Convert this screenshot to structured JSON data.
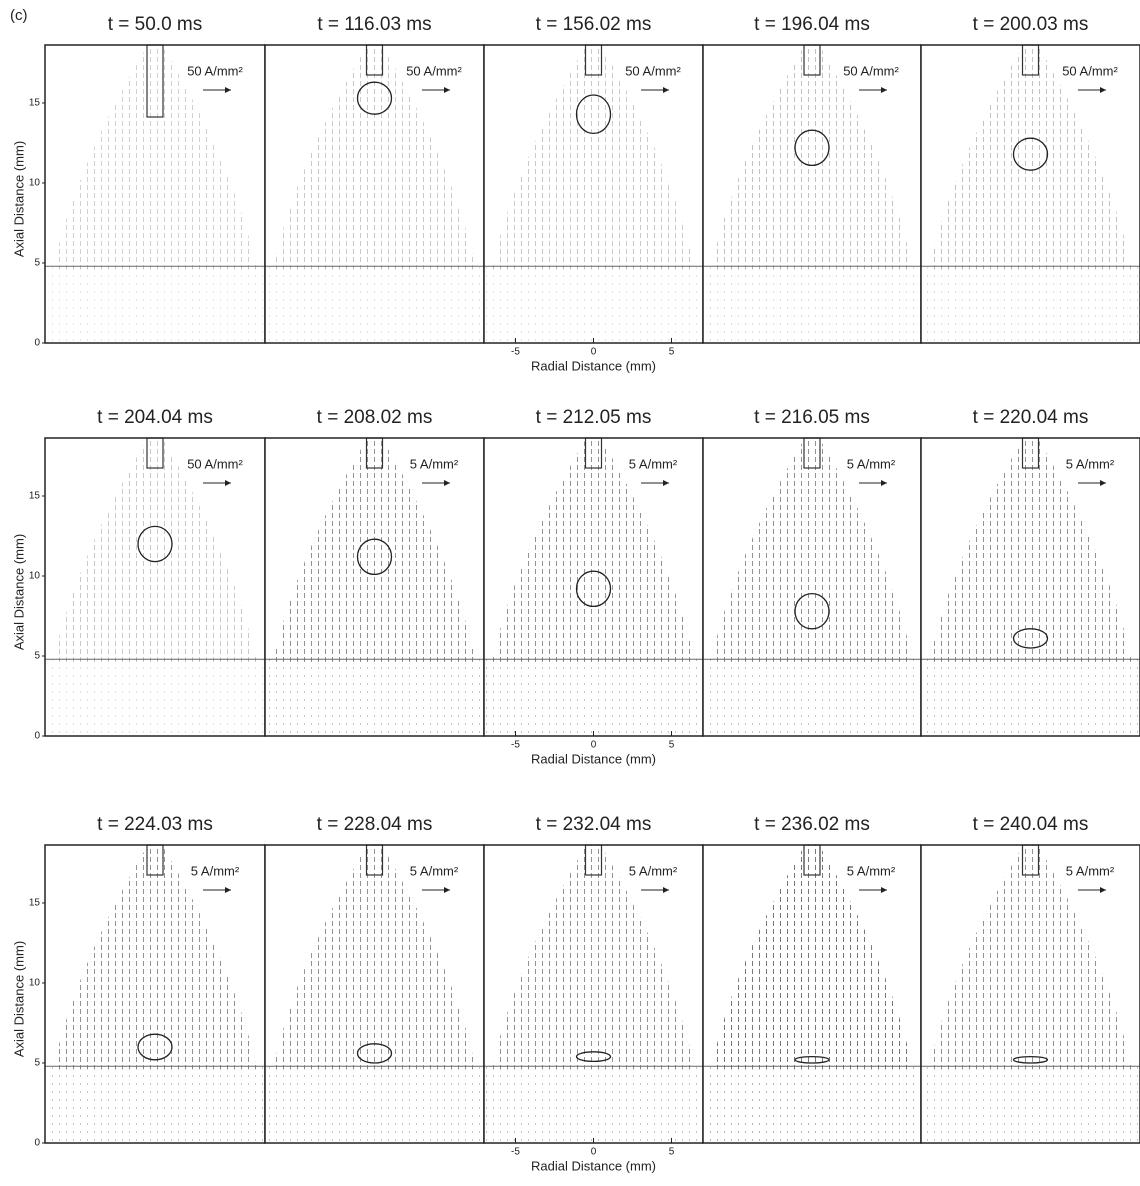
{
  "figure_label": "(c)",
  "rows": [
    {
      "panels": [
        {
          "time": "t = 50.0 ms",
          "scale": "50 A/mm²"
        },
        {
          "time": "t = 116.03 ms",
          "scale": "50 A/mm²"
        },
        {
          "time": "t = 156.02 ms",
          "scale": "50 A/mm²"
        },
        {
          "time": "t = 196.04 ms",
          "scale": "50 A/mm²"
        },
        {
          "time": "t = 200.03 ms",
          "scale": "50 A/mm²"
        }
      ]
    },
    {
      "panels": [
        {
          "time": "t = 204.04 ms",
          "scale": "50 A/mm²"
        },
        {
          "time": "t = 208.02 ms",
          "scale": "5 A/mm²"
        },
        {
          "time": "t = 212.05 ms",
          "scale": "5 A/mm²"
        },
        {
          "time": "t = 216.05 ms",
          "scale": "5 A/mm²"
        },
        {
          "time": "t = 220.04 ms",
          "scale": "5 A/mm²"
        }
      ]
    },
    {
      "panels": [
        {
          "time": "t = 224.03 ms",
          "scale": "5 A/mm²"
        },
        {
          "time": "t = 228.04 ms",
          "scale": "5 A/mm²"
        },
        {
          "time": "t = 232.04 ms",
          "scale": "5 A/mm²"
        },
        {
          "time": "t = 236.02 ms",
          "scale": "5 A/mm²"
        },
        {
          "time": "t = 240.04 ms",
          "scale": "5 A/mm²"
        }
      ]
    }
  ],
  "y_axis": {
    "label": "Axial Distance (mm)",
    "ticks": [
      0,
      5,
      10,
      15
    ]
  },
  "x_axis": {
    "label": "Radial Distance (mm)",
    "ticks": [
      -5,
      0,
      5
    ]
  }
}
